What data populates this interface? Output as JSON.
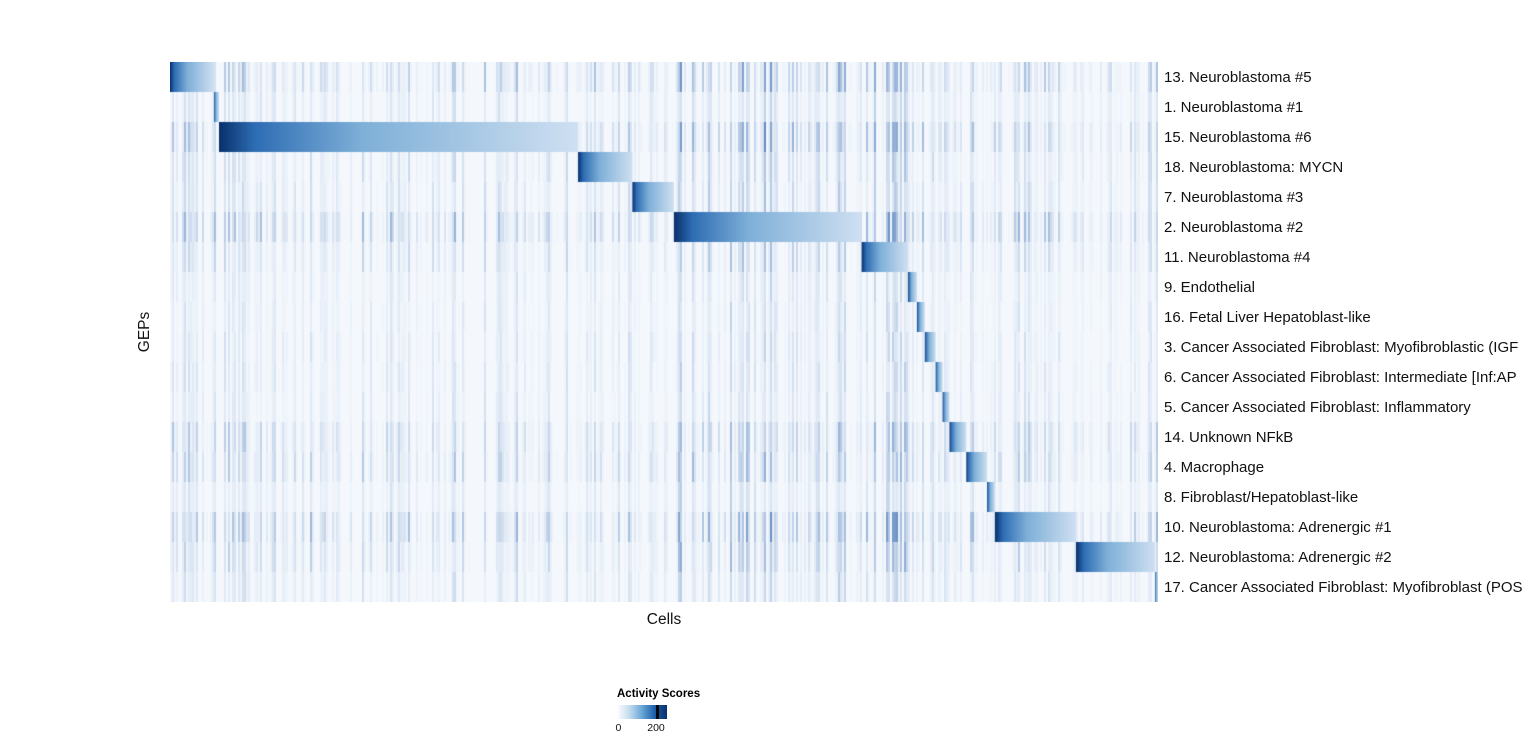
{
  "figure": {
    "x_axis_label": "Cells",
    "y_axis_label": "GEPs"
  },
  "legend": {
    "title": "Activity Scores",
    "ticks": [
      "0",
      "200"
    ],
    "tick_values": [
      0,
      200
    ],
    "gradient_stops": [
      "#ffffff",
      "#c3daee",
      "#6aa6d8",
      "#1d5fa9",
      "#08306b"
    ],
    "max_tick_position_fraction": 0.78
  },
  "chart_data": {
    "type": "heatmap",
    "title": "",
    "xlabel": "Cells",
    "ylabel": "GEPs",
    "legend_title": "Activity Scores",
    "colormap": "Blues",
    "value_range": [
      0,
      200
    ],
    "legend_position": "bottom",
    "grid": false,
    "base_color": "#f4f8fd",
    "noise_color_rgb": "62,112,178",
    "block_gradient": [
      "#08306b",
      "#2e6db4",
      "#7fb0d8",
      "#cfe0f2"
    ],
    "description": "Cells sorted by GEP assignment along x; each GEP row shows a dark-to-light activity block over its own cells, forming a diagonal staircase.",
    "rows": [
      {
        "label": "13. Neuroblastoma #5",
        "block_start": 0.0,
        "block_end": 0.0445,
        "noise": 0.45
      },
      {
        "label": "1. Neuroblastoma #1",
        "block_start": 0.0445,
        "block_end": 0.0496,
        "noise": 0.22
      },
      {
        "label": "15. Neuroblastoma #6",
        "block_start": 0.0496,
        "block_end": 0.413,
        "noise": 0.5
      },
      {
        "label": "18. Neuroblastoma: MYCN",
        "block_start": 0.413,
        "block_end": 0.468,
        "noise": 0.28
      },
      {
        "label": "7. Neuroblastoma #3",
        "block_start": 0.468,
        "block_end": 0.51,
        "noise": 0.26
      },
      {
        "label": "2. Neuroblastoma #2",
        "block_start": 0.51,
        "block_end": 0.7,
        "noise": 0.55
      },
      {
        "label": "11. Neuroblastoma #4",
        "block_start": 0.7,
        "block_end": 0.747,
        "noise": 0.3
      },
      {
        "label": "9. Endothelial",
        "block_start": 0.747,
        "block_end": 0.756,
        "noise": 0.18
      },
      {
        "label": "16. Fetal Liver Hepatoblast-like",
        "block_start": 0.756,
        "block_end": 0.764,
        "noise": 0.18
      },
      {
        "label": "3. Cancer Associated Fibroblast: Myofibroblastic (IGF",
        "block_start": 0.764,
        "block_end": 0.775,
        "noise": 0.2
      },
      {
        "label": "6. Cancer Associated Fibroblast: Intermediate [Inf:AP",
        "block_start": 0.775,
        "block_end": 0.782,
        "noise": 0.2
      },
      {
        "label": "5. Cancer Associated Fibroblast: Inflammatory",
        "block_start": 0.782,
        "block_end": 0.789,
        "noise": 0.2
      },
      {
        "label": "14. Unknown NFkB",
        "block_start": 0.789,
        "block_end": 0.806,
        "noise": 0.4
      },
      {
        "label": "4. Macrophage",
        "block_start": 0.806,
        "block_end": 0.827,
        "noise": 0.4
      },
      {
        "label": "8. Fibroblast/Hepatoblast-like",
        "block_start": 0.827,
        "block_end": 0.835,
        "noise": 0.2
      },
      {
        "label": "10. Neuroblastoma: Adrenergic #1",
        "block_start": 0.835,
        "block_end": 0.917,
        "noise": 0.55
      },
      {
        "label": "12. Neuroblastoma: Adrenergic #2",
        "block_start": 0.917,
        "block_end": 0.997,
        "noise": 0.35
      },
      {
        "label": "17. Cancer Associated Fibroblast: Myofibroblast (POS",
        "block_start": 0.997,
        "block_end": 1.0,
        "noise": 0.22
      }
    ]
  }
}
